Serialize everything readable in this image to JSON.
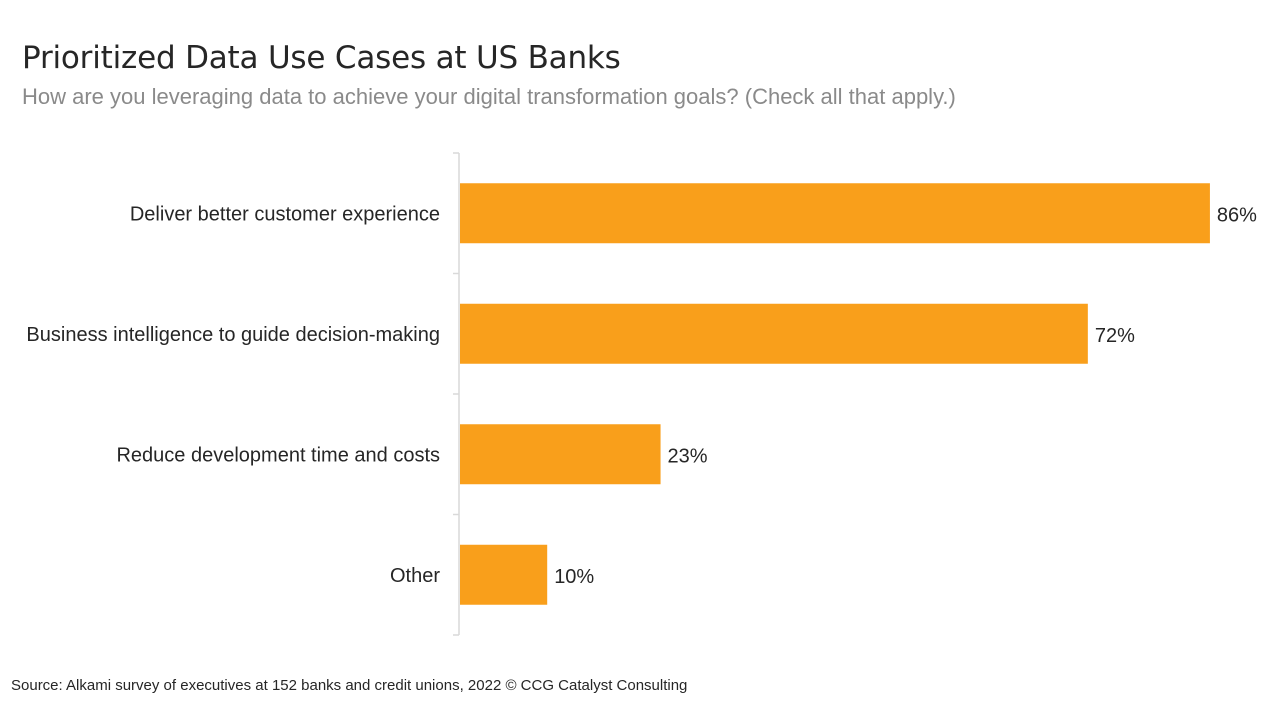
{
  "header": {
    "title": "Prioritized Data Use Cases at US Banks",
    "subtitle": "How are you leveraging data to achieve your digital transformation goals? (Check all that apply.)"
  },
  "footer": {
    "source": "Source: Alkami survey of executives at 152 banks and credit unions, 2022 © CCG Catalyst Consulting"
  },
  "colors": {
    "bar": "#F99F1B",
    "label_text": "#262626",
    "axis": "#d9d9d9"
  },
  "chart_data": {
    "type": "bar",
    "orientation": "horizontal",
    "categories": [
      "Deliver better customer experience",
      "Business intelligence to guide decision-making",
      "Reduce development time and costs",
      "Other"
    ],
    "values": [
      86,
      72,
      23,
      10
    ],
    "value_labels": [
      "86%",
      "72%",
      "23%",
      "10%"
    ],
    "unit": "%",
    "xlim": [
      0,
      100
    ],
    "grid": false,
    "legend": "none"
  }
}
